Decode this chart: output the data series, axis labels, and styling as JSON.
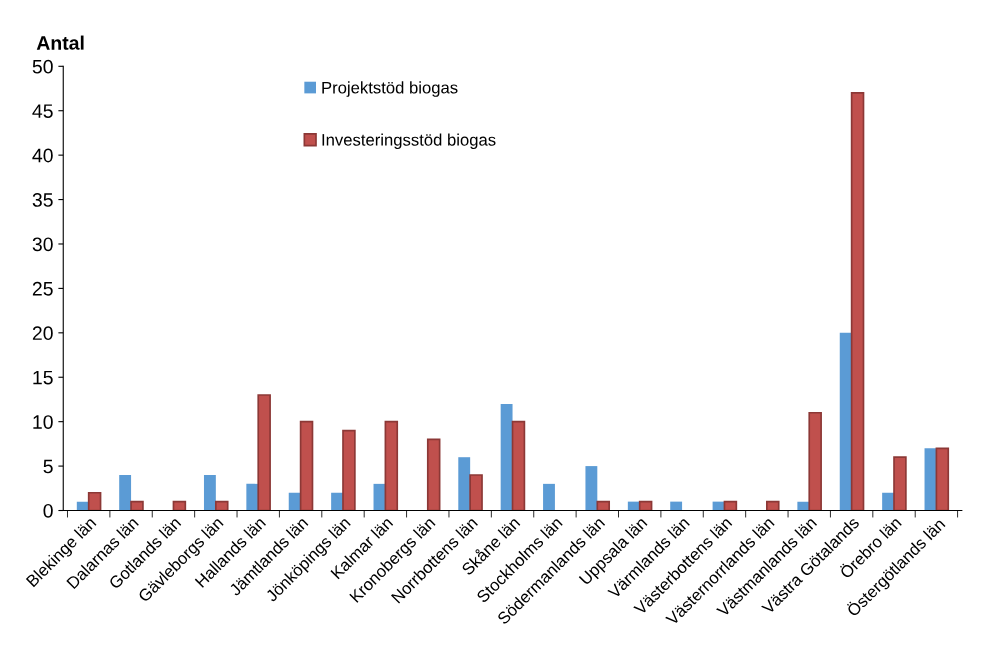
{
  "chart_data": {
    "type": "bar",
    "ylabel": "Antal",
    "categories": [
      "Blekinge län",
      "Dalarnas län",
      "Gotlands län",
      "Gävleborgs län",
      "Hallands län",
      "Jämtlands län",
      "Jönköpings län",
      "Kalmar län",
      "Kronobergs län",
      "Norrbottens län",
      "Skåne län",
      "Stockholms län",
      "Södermanlands län",
      "Uppsala län",
      "Värmlands län",
      "Västerbottens län",
      "Västernorrlands län",
      "Västmanlands län",
      "Västra Götalands",
      "Örebro län",
      "Östergötlands län"
    ],
    "series": [
      {
        "name": "Projektstöd biogas",
        "color": "#5b9bd5",
        "values": [
          1,
          4,
          0,
          4,
          3,
          2,
          2,
          3,
          0,
          6,
          12,
          3,
          5,
          1,
          1,
          1,
          0,
          1,
          20,
          2,
          7
        ]
      },
      {
        "name": "Investeringsstöd biogas",
        "color": "#c0504d",
        "values": [
          2,
          1,
          1,
          1,
          13,
          10,
          9,
          10,
          8,
          4,
          10,
          0,
          1,
          1,
          0,
          1,
          1,
          11,
          47,
          6,
          7
        ]
      }
    ],
    "ylim": [
      0,
      50
    ],
    "yticks": [
      0,
      5,
      10,
      15,
      20,
      25,
      30,
      35,
      40,
      45,
      50
    ],
    "grid": false,
    "legend": "top"
  }
}
